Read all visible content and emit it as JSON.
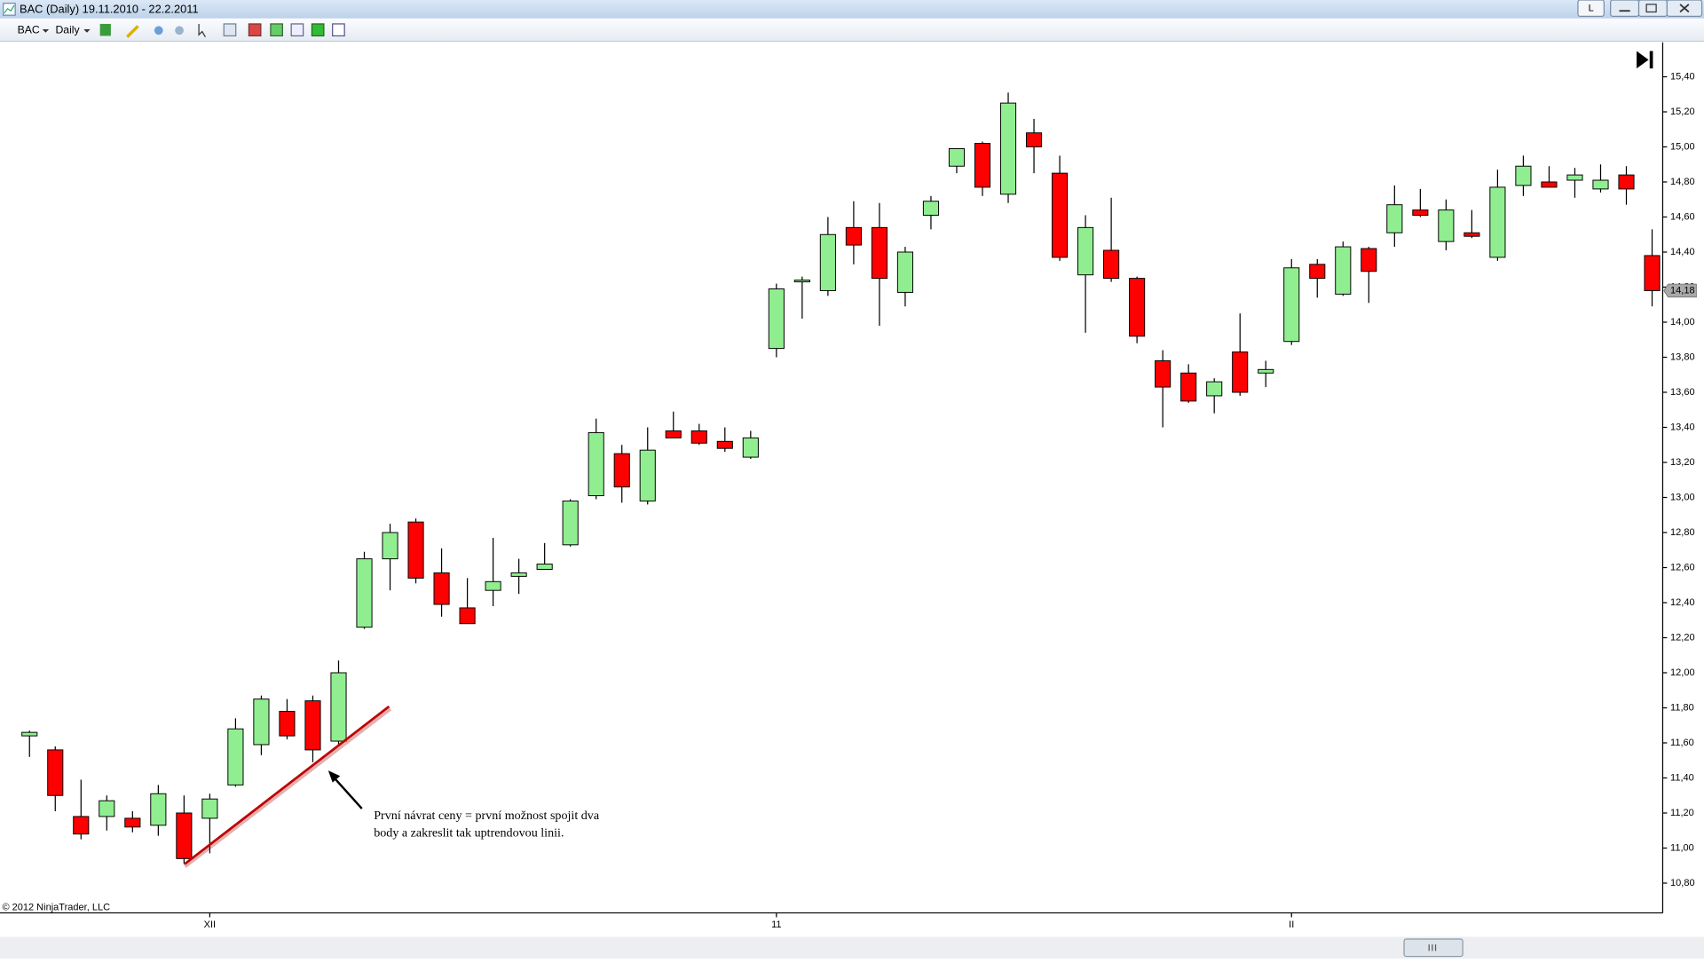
{
  "window": {
    "title": "BAC (Daily)  19.11.2010 - 22.2.2011"
  },
  "toolbar": {
    "instrument": "BAC",
    "interval": "Daily"
  },
  "chart_data": {
    "type": "candlestick",
    "categories": [
      null,
      null,
      null,
      null,
      null,
      null,
      null,
      "XII",
      null,
      null,
      null,
      null,
      null,
      null,
      null,
      null,
      null,
      null,
      null,
      null,
      null,
      null,
      null,
      null,
      null,
      null,
      null,
      null,
      null,
      "11",
      null,
      null,
      null,
      null,
      null,
      null,
      null,
      null,
      null,
      null,
      null,
      null,
      null,
      null,
      null,
      null,
      null,
      null,
      null,
      "II",
      null,
      null,
      null,
      null,
      null,
      null,
      null,
      null,
      null,
      null,
      null,
      null,
      null,
      null
    ],
    "open": [
      11.64,
      11.56,
      11.18,
      11.18,
      11.17,
      11.13,
      11.2,
      11.17,
      11.36,
      11.59,
      11.78,
      11.84,
      11.61,
      12.26,
      12.65,
      12.86,
      12.57,
      12.37,
      12.47,
      12.55,
      12.59,
      12.73,
      13.01,
      13.25,
      12.98,
      13.38,
      13.38,
      13.32,
      13.23,
      13.85,
      14.23,
      14.18,
      14.54,
      14.54,
      14.17,
      14.61,
      14.89,
      15.02,
      14.73,
      15.08,
      14.85,
      14.27,
      14.41,
      14.25,
      13.78,
      13.71,
      13.58,
      13.83,
      13.71,
      13.89,
      14.33,
      14.16,
      14.42,
      14.51,
      14.64,
      14.46,
      14.51,
      14.37,
      14.78,
      14.8,
      14.81,
      14.76,
      14.84,
      14.38
    ],
    "high": [
      11.67,
      11.58,
      11.39,
      11.3,
      11.21,
      11.36,
      11.3,
      11.31,
      11.74,
      11.87,
      11.85,
      11.87,
      12.07,
      12.69,
      12.85,
      12.88,
      12.71,
      12.54,
      12.77,
      12.65,
      12.74,
      12.99,
      13.45,
      13.3,
      13.4,
      13.49,
      13.42,
      13.4,
      13.38,
      14.22,
      14.26,
      14.6,
      14.69,
      14.68,
      14.43,
      14.72,
      14.99,
      15.03,
      15.31,
      15.16,
      14.95,
      14.61,
      14.71,
      14.26,
      13.84,
      13.76,
      13.68,
      14.05,
      13.78,
      14.36,
      14.36,
      14.46,
      14.43,
      14.78,
      14.76,
      14.7,
      14.64,
      14.87,
      14.95,
      14.89,
      14.88,
      14.9,
      14.89,
      14.53
    ],
    "low": [
      11.52,
      11.21,
      11.05,
      11.1,
      11.09,
      11.07,
      10.91,
      10.97,
      11.35,
      11.53,
      11.62,
      11.49,
      11.59,
      12.25,
      12.47,
      12.51,
      12.32,
      12.28,
      12.38,
      12.45,
      12.59,
      12.72,
      12.99,
      12.97,
      12.96,
      13.34,
      13.3,
      13.26,
      13.22,
      13.8,
      14.02,
      14.15,
      14.33,
      13.98,
      14.09,
      14.53,
      14.85,
      14.72,
      14.68,
      14.85,
      14.35,
      13.94,
      14.23,
      13.88,
      13.4,
      13.54,
      13.48,
      13.58,
      13.63,
      13.87,
      14.14,
      14.15,
      14.11,
      14.43,
      14.6,
      14.41,
      14.48,
      14.35,
      14.72,
      14.77,
      14.71,
      14.74,
      14.67,
      14.09
    ],
    "close": [
      11.66,
      11.3,
      11.08,
      11.27,
      11.12,
      11.31,
      10.94,
      11.28,
      11.68,
      11.85,
      11.64,
      11.56,
      12.0,
      12.65,
      12.8,
      12.54,
      12.39,
      12.28,
      12.52,
      12.57,
      12.62,
      12.98,
      13.37,
      13.06,
      13.27,
      13.34,
      13.31,
      13.28,
      13.34,
      14.19,
      14.24,
      14.5,
      14.44,
      14.25,
      14.4,
      14.69,
      14.99,
      14.77,
      15.25,
      15.0,
      14.37,
      14.54,
      14.25,
      13.92,
      13.63,
      13.55,
      13.66,
      13.6,
      13.73,
      14.31,
      14.25,
      14.43,
      14.29,
      14.67,
      14.61,
      14.64,
      14.49,
      14.77,
      14.89,
      14.77,
      14.84,
      14.81,
      14.76,
      14.18
    ],
    "up_color": "#90ee90",
    "down_color": "#ff0000",
    "ylim": [
      10.63,
      15.59
    ],
    "yticks": [
      {
        "value": 10.8,
        "label": "10,80"
      },
      {
        "value": 11.0,
        "label": "11,00"
      },
      {
        "value": 11.2,
        "label": "11,20"
      },
      {
        "value": 11.4,
        "label": "11,40"
      },
      {
        "value": 11.6,
        "label": "11,60"
      },
      {
        "value": 11.8,
        "label": "11,80"
      },
      {
        "value": 12.0,
        "label": "12,00"
      },
      {
        "value": 12.2,
        "label": "12,20"
      },
      {
        "value": 12.4,
        "label": "12,40"
      },
      {
        "value": 12.6,
        "label": "12,60"
      },
      {
        "value": 12.8,
        "label": "12,80"
      },
      {
        "value": 13.0,
        "label": "13,00"
      },
      {
        "value": 13.2,
        "label": "13,20"
      },
      {
        "value": 13.4,
        "label": "13,40"
      },
      {
        "value": 13.6,
        "label": "13,60"
      },
      {
        "value": 13.8,
        "label": "13,80"
      },
      {
        "value": 14.0,
        "label": "14,00"
      },
      {
        "value": 14.2,
        "label": "14,20"
      },
      {
        "value": 14.4,
        "label": "14,40"
      },
      {
        "value": 14.6,
        "label": "14,60"
      },
      {
        "value": 14.8,
        "label": "14,80"
      },
      {
        "value": 15.0,
        "label": "15,00"
      },
      {
        "value": 15.2,
        "label": "15,20"
      },
      {
        "value": 15.4,
        "label": "15,40"
      }
    ],
    "last_price": {
      "value": 14.18,
      "label": "14,18"
    },
    "annotation": [
      "První návrat ceny = první možnost spojit dva",
      "body a zakreslit tak uptrendovou linii."
    ],
    "copyright": "© 2012 NinjaTrader, LLC"
  }
}
